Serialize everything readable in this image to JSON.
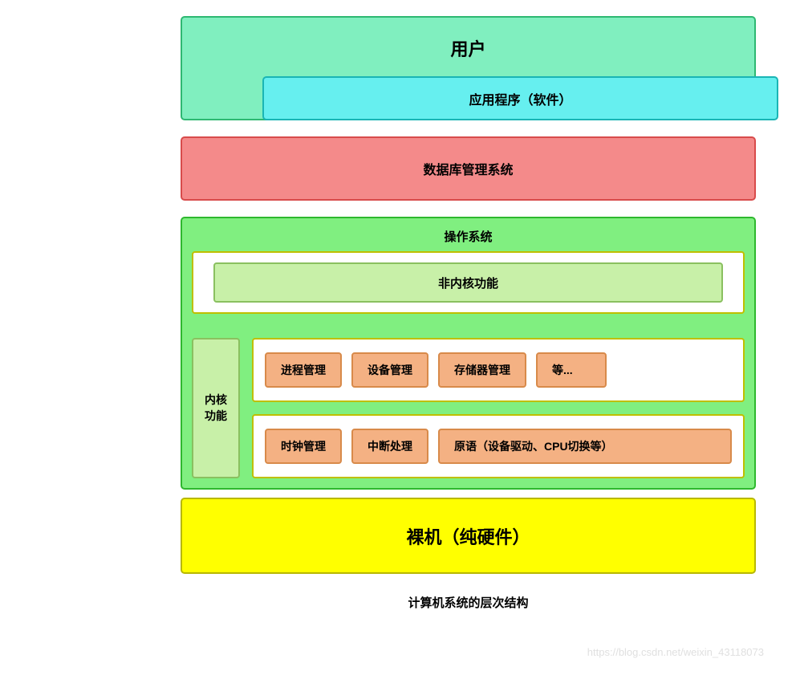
{
  "diagram": {
    "title": "计算机系统的层次结构",
    "user_layer": {
      "label": "用户",
      "bg_color": "#80efbf",
      "border_color": "#2eb872",
      "app": {
        "label": "应用程序（软件）",
        "bg_color": "#66efef",
        "border_color": "#1ab5b5"
      }
    },
    "dbms_layer": {
      "label": "数据库管理系统",
      "bg_color": "#f48a8a",
      "border_color": "#d84b4b"
    },
    "os_layer": {
      "label": "操作系统",
      "bg_color": "#80ef80",
      "border_color": "#2eb82e",
      "nonkernel": {
        "label": "非内核功能",
        "bg_color": "#c8f0a8",
        "border_color": "#8ac060",
        "wrap_border": "#bfbf00"
      },
      "kernel_label": "内核\n功能",
      "kernel_row1": [
        {
          "label": "进程管理"
        },
        {
          "label": "设备管理"
        },
        {
          "label": "存储器管理"
        },
        {
          "label": "等..."
        }
      ],
      "kernel_row2": [
        {
          "label": "时钟管理"
        },
        {
          "label": "中断处理"
        },
        {
          "label": "原语（设备驱动、CPU切换等）"
        }
      ],
      "kernel_item_bg": "#f4b183",
      "kernel_item_border": "#d88a4a"
    },
    "baremetal_layer": {
      "label": "裸机（纯硬件）",
      "bg_color": "#ffff00",
      "border_color": "#b8b800"
    },
    "watermark": "https://blog.csdn.net/weixin_43118073",
    "fonts": {
      "title_size": 22,
      "heading_size": 16,
      "body_size": 14
    }
  }
}
